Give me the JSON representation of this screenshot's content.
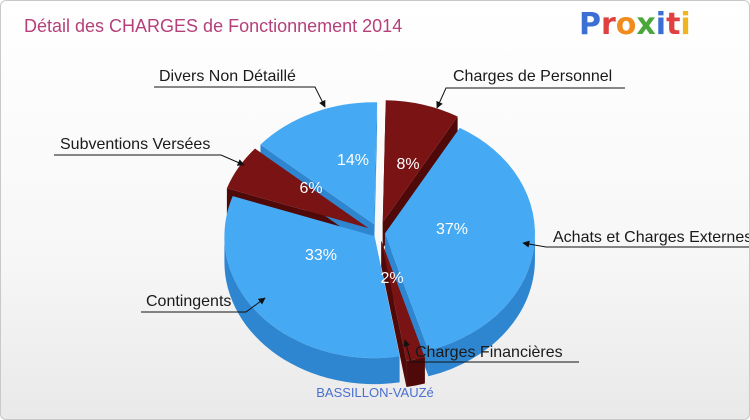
{
  "title": "Détail des CHARGES de Fonctionnement 2014",
  "logo": "Proxiti",
  "commune": "BASSILLON-VAUZé",
  "colors": {
    "blue": "#45a9f3",
    "blue_side": "#2f86d0",
    "dark": "#7a1414",
    "dark_side": "#4f0909",
    "title": "#b5407a"
  },
  "logo_letters": [
    {
      "ch": "P",
      "color": "#3b6fd3"
    },
    {
      "ch": "r",
      "color": "#e04040"
    },
    {
      "ch": "o",
      "color": "#f08c1e"
    },
    {
      "ch": "x",
      "color": "#4aa83a"
    },
    {
      "ch": "i",
      "color": "#3b6fd3"
    },
    {
      "ch": "t",
      "color": "#e04040"
    },
    {
      "ch": "i",
      "color": "#f0b41e"
    }
  ],
  "chart_data": {
    "type": "pie",
    "title": "Détail des CHARGES de Fonctionnement 2014",
    "slices": [
      {
        "label": "Charges de Personnel",
        "value": 8,
        "display": "8%"
      },
      {
        "label": "Achats et Charges Externes",
        "value": 37,
        "display": "37%"
      },
      {
        "label": "Charges Financières",
        "value": 2,
        "display": "2%"
      },
      {
        "label": "Contingents",
        "value": 33,
        "display": "33%"
      },
      {
        "label": "Subventions Versées",
        "value": 6,
        "display": "6%"
      },
      {
        "label": "Divers Non Détaillé",
        "value": 14,
        "display": "14%"
      }
    ]
  }
}
